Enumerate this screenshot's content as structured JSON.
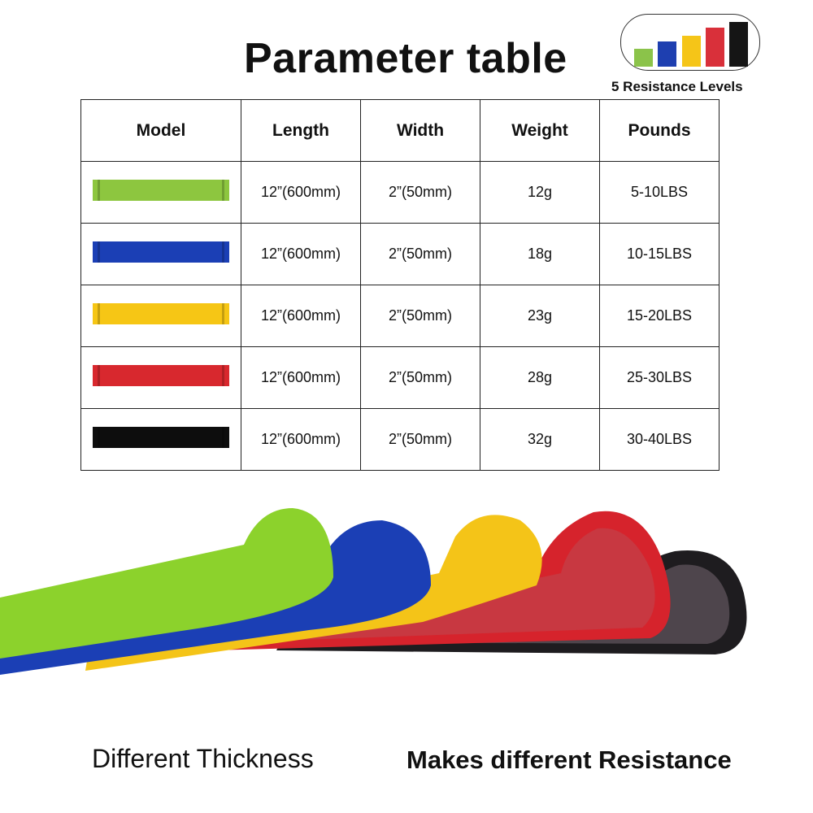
{
  "title": "Parameter table",
  "badge": {
    "label": "5 Resistance Levels",
    "bars": [
      "#8bc34a",
      "#1e3fb0",
      "#f5c518",
      "#d9303a",
      "#151515"
    ]
  },
  "table": {
    "headers": [
      "Model",
      "Length",
      "Width",
      "Weight",
      "Pounds"
    ],
    "rows": [
      {
        "color": "#8dc63f",
        "length": "12”(600mm)",
        "width": "2”(50mm)",
        "weight": "12g",
        "pounds": "5-10LBS"
      },
      {
        "color": "#1b3fb5",
        "length": "12”(600mm)",
        "width": "2”(50mm)",
        "weight": "18g",
        "pounds": "10-15LBS"
      },
      {
        "color": "#f6c615",
        "length": "12”(600mm)",
        "width": "2”(50mm)",
        "weight": "23g",
        "pounds": "15-20LBS"
      },
      {
        "color": "#d8282e",
        "length": "12”(600mm)",
        "width": "2”(50mm)",
        "weight": "28g",
        "pounds": "25-30LBS"
      },
      {
        "color": "#0d0d0d",
        "length": "12”(600mm)",
        "width": "2”(50mm)",
        "weight": "32g",
        "pounds": "30-40LBS"
      }
    ]
  },
  "captions": {
    "left": "Different Thickness",
    "right": "Makes different Resistance"
  }
}
